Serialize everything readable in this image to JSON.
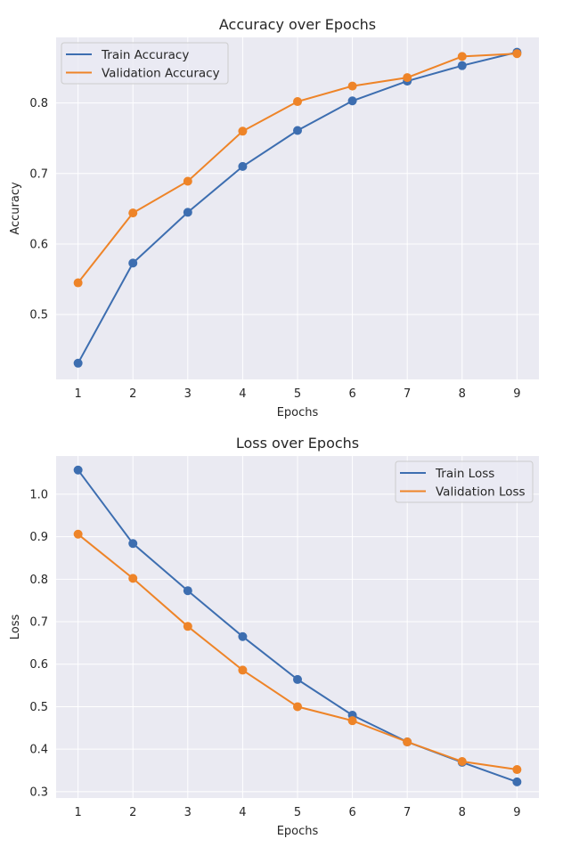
{
  "colors": {
    "background": "#eaeaf2",
    "grid": "#ffffff",
    "train": "#3d6eb0",
    "validation": "#ee8428"
  },
  "chart_data": [
    {
      "type": "line",
      "title": "Accuracy over Epochs",
      "xlabel": "Epochs",
      "ylabel": "Accuracy",
      "x": [
        1,
        2,
        3,
        4,
        5,
        6,
        7,
        8,
        9
      ],
      "xlim": [
        0.6,
        9.4
      ],
      "ylim": [
        0.408,
        0.893
      ],
      "xticks": [
        1,
        2,
        3,
        4,
        5,
        6,
        7,
        8,
        9
      ],
      "yticks": [
        0.5,
        0.6,
        0.7,
        0.8
      ],
      "ytick_labels": [
        "0.5",
        "0.6",
        "0.7",
        "0.8"
      ],
      "grid": true,
      "legend_position": "top-left",
      "series": [
        {
          "name": "Train Accuracy",
          "color_key": "train",
          "values": [
            0.431,
            0.573,
            0.645,
            0.71,
            0.761,
            0.803,
            0.831,
            0.853,
            0.872
          ]
        },
        {
          "name": "Validation Accuracy",
          "color_key": "validation",
          "values": [
            0.545,
            0.644,
            0.689,
            0.76,
            0.802,
            0.824,
            0.836,
            0.866,
            0.87
          ]
        }
      ]
    },
    {
      "type": "line",
      "title": "Loss over Epochs",
      "xlabel": "Epochs",
      "ylabel": "Loss",
      "x": [
        1,
        2,
        3,
        4,
        5,
        6,
        7,
        8,
        9
      ],
      "xlim": [
        0.6,
        9.4
      ],
      "ylim": [
        0.285,
        1.09
      ],
      "xticks": [
        1,
        2,
        3,
        4,
        5,
        6,
        7,
        8,
        9
      ],
      "yticks": [
        0.3,
        0.4,
        0.5,
        0.6,
        0.7,
        0.8,
        0.9,
        1.0
      ],
      "ytick_labels": [
        "0.3",
        "0.4",
        "0.5",
        "0.6",
        "0.7",
        "0.8",
        "0.9",
        "1.0"
      ],
      "grid": true,
      "legend_position": "top-right",
      "series": [
        {
          "name": "Train Loss",
          "color_key": "train",
          "values": [
            1.057,
            0.884,
            0.773,
            0.665,
            0.564,
            0.48,
            0.417,
            0.369,
            0.323
          ]
        },
        {
          "name": "Validation Loss",
          "color_key": "validation",
          "values": [
            0.906,
            0.802,
            0.689,
            0.586,
            0.5,
            0.467,
            0.417,
            0.371,
            0.352
          ]
        }
      ]
    }
  ]
}
